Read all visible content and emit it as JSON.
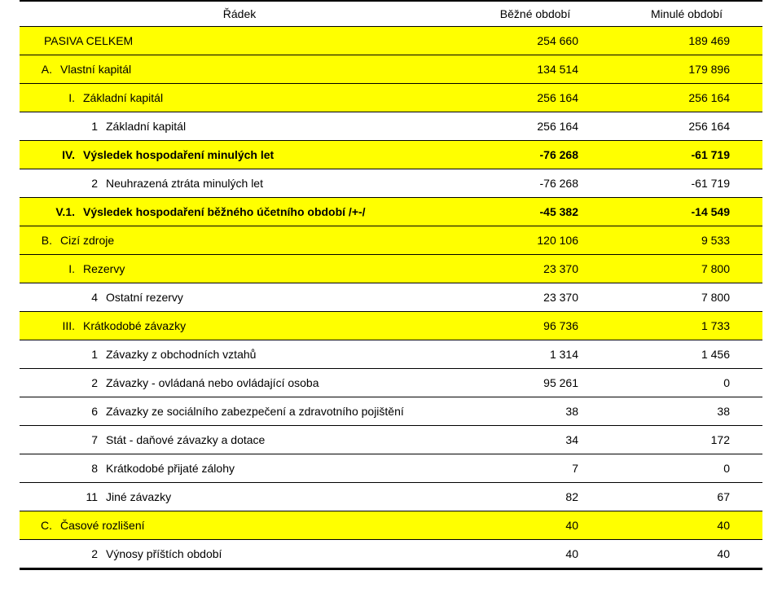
{
  "colors": {
    "highlight": "#ffff00",
    "rule": "#000000",
    "text": "#000000",
    "background": "#ffffff"
  },
  "layout": {
    "widthPx": 960,
    "heightPx": 749,
    "rowHeightPx": 34,
    "fontSizePx": 14,
    "colWidthsPx": [
      540,
      186,
      186
    ]
  },
  "header": {
    "label": "Řádek",
    "col1": "Běžné období",
    "col2": "Minulé období"
  },
  "rows": [
    {
      "level": 0,
      "prefix": "",
      "text": "PASIVA CELKEM",
      "val1": "254 660",
      "val2": "189 469",
      "highlight": true,
      "bold": false
    },
    {
      "level": 1,
      "prefix": "A.",
      "text": "Vlastní kapitál",
      "val1": "134 514",
      "val2": "179 896",
      "highlight": true,
      "bold": false
    },
    {
      "level": 2,
      "prefix": "I.",
      "text": "Základní kapitál",
      "val1": "256 164",
      "val2": "256 164",
      "highlight": true,
      "bold": false
    },
    {
      "level": 3,
      "prefix": "1",
      "text": "Základní kapitál",
      "val1": "256 164",
      "val2": "256 164",
      "highlight": false,
      "bold": false
    },
    {
      "level": 2,
      "prefix": "IV.",
      "text": "Výsledek hospodaření minulých let",
      "val1": "-76 268",
      "val2": "-61 719",
      "highlight": true,
      "bold": true
    },
    {
      "level": 3,
      "prefix": "2",
      "text": "Neuhrazená ztráta minulých let",
      "val1": "-76 268",
      "val2": "-61 719",
      "highlight": false,
      "bold": false
    },
    {
      "level": 2,
      "prefix": "V.1.",
      "text": "Výsledek hospodaření běžného účetního období /+-/",
      "val1": "-45 382",
      "val2": "-14 549",
      "highlight": true,
      "bold": true
    },
    {
      "level": 1,
      "prefix": "B.",
      "text": "Cizí zdroje",
      "val1": "120 106",
      "val2": "9 533",
      "highlight": true,
      "bold": false
    },
    {
      "level": 2,
      "prefix": "I.",
      "text": "Rezervy",
      "val1": "23 370",
      "val2": "7 800",
      "highlight": true,
      "bold": false
    },
    {
      "level": 3,
      "prefix": "4",
      "text": "Ostatní rezervy",
      "val1": "23 370",
      "val2": "7 800",
      "highlight": false,
      "bold": false
    },
    {
      "level": 2,
      "prefix": "III.",
      "text": "Krátkodobé závazky",
      "val1": "96 736",
      "val2": "1 733",
      "highlight": true,
      "bold": false
    },
    {
      "level": 3,
      "prefix": "1",
      "text": "Závazky z obchodních vztahů",
      "val1": "1 314",
      "val2": "1 456",
      "highlight": false,
      "bold": false
    },
    {
      "level": 3,
      "prefix": "2",
      "text": "Závazky - ovládaná nebo ovládající osoba",
      "val1": "95 261",
      "val2": "0",
      "highlight": false,
      "bold": false
    },
    {
      "level": 3,
      "prefix": "6",
      "text": "Závazky ze sociálního zabezpečení a zdravotního pojištění",
      "val1": "38",
      "val2": "38",
      "highlight": false,
      "bold": false
    },
    {
      "level": 3,
      "prefix": "7",
      "text": "Stát - daňové závazky a dotace",
      "val1": "34",
      "val2": "172",
      "highlight": false,
      "bold": false
    },
    {
      "level": 3,
      "prefix": "8",
      "text": "Krátkodobé přijaté zálohy",
      "val1": "7",
      "val2": "0",
      "highlight": false,
      "bold": false
    },
    {
      "level": 3,
      "prefix": "11",
      "text": "Jiné závazky",
      "val1": "82",
      "val2": "67",
      "highlight": false,
      "bold": false
    },
    {
      "level": 1,
      "prefix": "C.",
      "text": "Časové rozlišení",
      "val1": "40",
      "val2": "40",
      "highlight": true,
      "bold": false
    },
    {
      "level": 3,
      "prefix": "2",
      "text": "Výnosy příštích období",
      "val1": "40",
      "val2": "40",
      "highlight": false,
      "bold": false
    }
  ]
}
